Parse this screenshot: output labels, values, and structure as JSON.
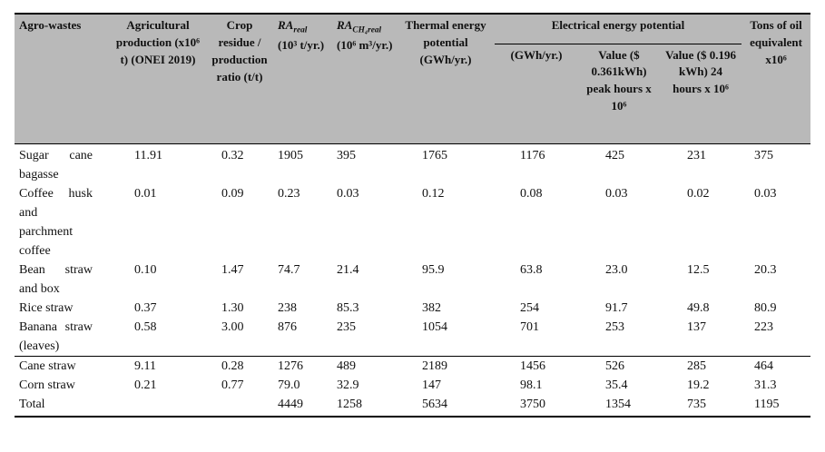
{
  "table": {
    "colors": {
      "header_bg": "#b9b9b9",
      "border": "#000000"
    },
    "headers": {
      "agro_wastes": "Agro-wastes",
      "agricultural_production": "Agricultural production (x10⁶ t) (ONEI 2019)",
      "crop_residue_ratio": "Crop residue / production ratio (t/t)",
      "ra_real_main": "RA",
      "ra_real_sub": "real",
      "ra_real_unit": "(10³ t/yr.)",
      "ra_ch4_main": "RA",
      "ra_ch4_sub": "CH₄real",
      "ra_ch4_unit": "(10⁶ m³/yr.)",
      "thermal_energy": "Thermal energy potential (GWh/yr.)",
      "electrical_energy_group": "Electrical energy potential",
      "electrical_gwh": "(GWh/yr.)",
      "value_peak": "Value ($ 0.361kWh) peak hours x 10⁶",
      "value_24h": "Value ($ 0.196 kWh) 24 hours x 10⁶",
      "tons_oil": "Tons of oil equivalent x10⁶"
    },
    "rows": [
      {
        "name": "Sugar cane bagasse",
        "values": [
          "11.91",
          "0.32",
          "1905",
          "395",
          "1765",
          "1176",
          "425",
          "231",
          "375"
        ]
      },
      {
        "name": "Coffee husk and parchment coffee",
        "values": [
          "0.01",
          "0.09",
          "0.23",
          "0.03",
          "0.12",
          "0.08",
          "0.03",
          "0.02",
          "0.03"
        ]
      },
      {
        "name": "Bean straw and box",
        "values": [
          "0.10",
          "1.47",
          "74.7",
          "21.4",
          "95.9",
          "63.8",
          "23.0",
          "12.5",
          "20.3"
        ]
      },
      {
        "name": "Rice straw",
        "values": [
          "0.37",
          "1.30",
          "238",
          "85.3",
          "382",
          "254",
          "91.7",
          "49.8",
          "80.9"
        ]
      },
      {
        "name": "Banana straw (leaves)",
        "values": [
          "0.58",
          "3.00",
          "876",
          "235",
          "1054",
          "701",
          "253",
          "137",
          "223"
        ]
      },
      {
        "name": "Cane straw",
        "rule_above": true,
        "values": [
          "9.11",
          "0.28",
          "1276",
          "489",
          "2189",
          "1456",
          "526",
          "285",
          "464"
        ]
      },
      {
        "name": "Corn straw",
        "values": [
          "0.21",
          "0.77",
          "79.0",
          "32.9",
          "147",
          "98.1",
          "35.4",
          "19.2",
          "31.3"
        ]
      },
      {
        "name": "Total",
        "values": [
          "",
          "",
          "4449",
          "1258",
          "5634",
          "3750",
          "1354",
          "735",
          "1195"
        ]
      }
    ]
  }
}
